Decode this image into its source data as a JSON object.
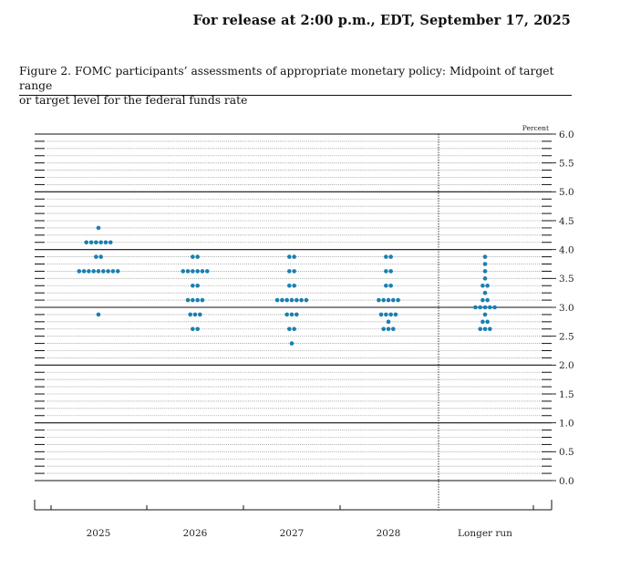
{
  "header": {
    "release": "For release at 2:00 p.m., EDT, September 17, 2025",
    "figure_title_line1": "Figure 2. FOMC participants’ assessments of appropriate monetary policy: Midpoint of target range",
    "figure_title_line2": "or target level for the federal funds rate"
  },
  "colors": {
    "dot": "#1a7fb0",
    "axis": "#111111",
    "grid": "#9a9a9a"
  },
  "chart_data": {
    "type": "scatter",
    "unit_label": "Percent",
    "ylim": [
      0,
      6
    ],
    "yticks": [
      "0.0",
      "0.5",
      "1.0",
      "1.5",
      "2.0",
      "2.5",
      "3.0",
      "3.5",
      "4.0",
      "4.5",
      "5.0",
      "5.5",
      "6.0"
    ],
    "categories": [
      "2025",
      "2026",
      "2027",
      "2028",
      "Longer run"
    ],
    "grid": true,
    "dots": [
      [
        {
          "rate": 4.375,
          "count": 1
        },
        {
          "rate": 4.125,
          "count": 6
        },
        {
          "rate": 3.875,
          "count": 2
        },
        {
          "rate": 3.625,
          "count": 9
        },
        {
          "rate": 2.875,
          "count": 1
        }
      ],
      [
        {
          "rate": 3.875,
          "count": 2
        },
        {
          "rate": 3.625,
          "count": 6
        },
        {
          "rate": 3.375,
          "count": 2
        },
        {
          "rate": 3.125,
          "count": 4
        },
        {
          "rate": 2.875,
          "count": 3
        },
        {
          "rate": 2.625,
          "count": 2
        }
      ],
      [
        {
          "rate": 3.875,
          "count": 2
        },
        {
          "rate": 3.625,
          "count": 2
        },
        {
          "rate": 3.375,
          "count": 2
        },
        {
          "rate": 3.125,
          "count": 7
        },
        {
          "rate": 2.875,
          "count": 3
        },
        {
          "rate": 2.625,
          "count": 2
        },
        {
          "rate": 2.375,
          "count": 1
        }
      ],
      [
        {
          "rate": 3.875,
          "count": 2
        },
        {
          "rate": 3.625,
          "count": 2
        },
        {
          "rate": 3.375,
          "count": 2
        },
        {
          "rate": 3.125,
          "count": 5
        },
        {
          "rate": 2.875,
          "count": 4
        },
        {
          "rate": 2.75,
          "count": 1
        },
        {
          "rate": 2.625,
          "count": 3
        }
      ],
      [
        {
          "rate": 3.875,
          "count": 1
        },
        {
          "rate": 3.75,
          "count": 1
        },
        {
          "rate": 3.625,
          "count": 1
        },
        {
          "rate": 3.5,
          "count": 1
        },
        {
          "rate": 3.375,
          "count": 2
        },
        {
          "rate": 3.25,
          "count": 1
        },
        {
          "rate": 3.125,
          "count": 2
        },
        {
          "rate": 3.0,
          "count": 5
        },
        {
          "rate": 2.875,
          "count": 1
        },
        {
          "rate": 2.75,
          "count": 2
        },
        {
          "rate": 2.625,
          "count": 3
        }
      ]
    ]
  }
}
